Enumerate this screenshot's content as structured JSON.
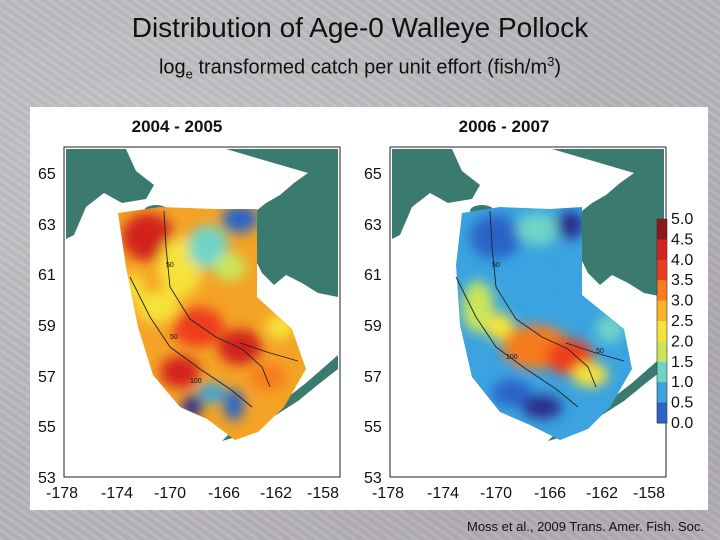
{
  "slide": {
    "title": "Distribution of Age-0 Walleye Pollock",
    "subtitle_pre": "log",
    "subtitle_sub": "e",
    "subtitle_mid": " transformed catch per unit effort (fish/m",
    "subtitle_sup": "3",
    "subtitle_post": ")",
    "citation": "Moss et al., 2009 Trans. Amer. Fish. Soc."
  },
  "map": {
    "panels": [
      {
        "title": "2004 - 2005",
        "dominant_level": "high"
      },
      {
        "title": "2006 - 2007",
        "dominant_level": "low"
      }
    ],
    "latitude_ticks": [
      "65",
      "63",
      "61",
      "59",
      "57",
      "55",
      "53"
    ],
    "longitude_ticks": [
      "-178",
      "-174",
      "-170",
      "-166",
      "-162",
      "-158"
    ],
    "contour_labels": [
      "50",
      "50",
      "100",
      "50",
      "100",
      "50"
    ],
    "legend": {
      "values": [
        "5.0",
        "4.5",
        "4.0",
        "3.5",
        "3.0",
        "2.5",
        "2.0",
        "1.5",
        "1.0",
        "0.5",
        "0.0"
      ],
      "colors": [
        "#8b1a1a",
        "#d2231f",
        "#ee3d1e",
        "#f77c1e",
        "#fbb227",
        "#f7e23a",
        "#c9e65a",
        "#6fd4c8",
        "#3aa3e0",
        "#2b63c7",
        "#2a2f8c"
      ]
    },
    "land_color": "#3b7a6e",
    "water_color": "#ffffff"
  }
}
